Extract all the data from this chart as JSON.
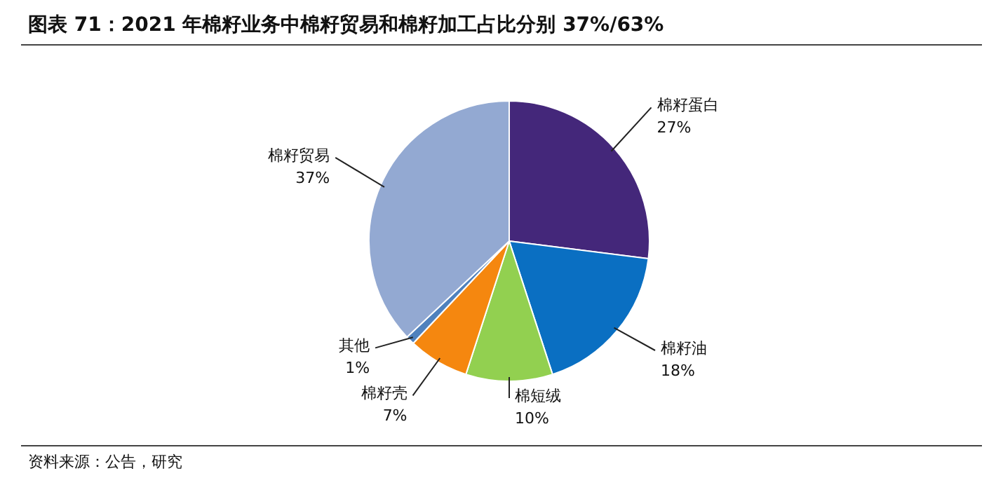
{
  "chart_data": {
    "type": "pie",
    "title": "图表 71：2021 年棉籽业务中棉籽贸易和棉籽加工占比分别 37%/63%",
    "categories": [
      "棉籽蛋白",
      "棉籽油",
      "棉短绒",
      "棉籽壳",
      "其他",
      "棉籽贸易"
    ],
    "values": [
      27,
      18,
      10,
      7,
      1,
      37
    ],
    "colors": [
      "#44277a",
      "#0a6fc2",
      "#92d050",
      "#f5870f",
      "#4f81bd",
      "#93a9d2"
    ],
    "value_labels": [
      "27%",
      "18%",
      "10%",
      "7%",
      "1%",
      "37%"
    ],
    "annotations": [
      "资料来源：公告，研究"
    ]
  }
}
